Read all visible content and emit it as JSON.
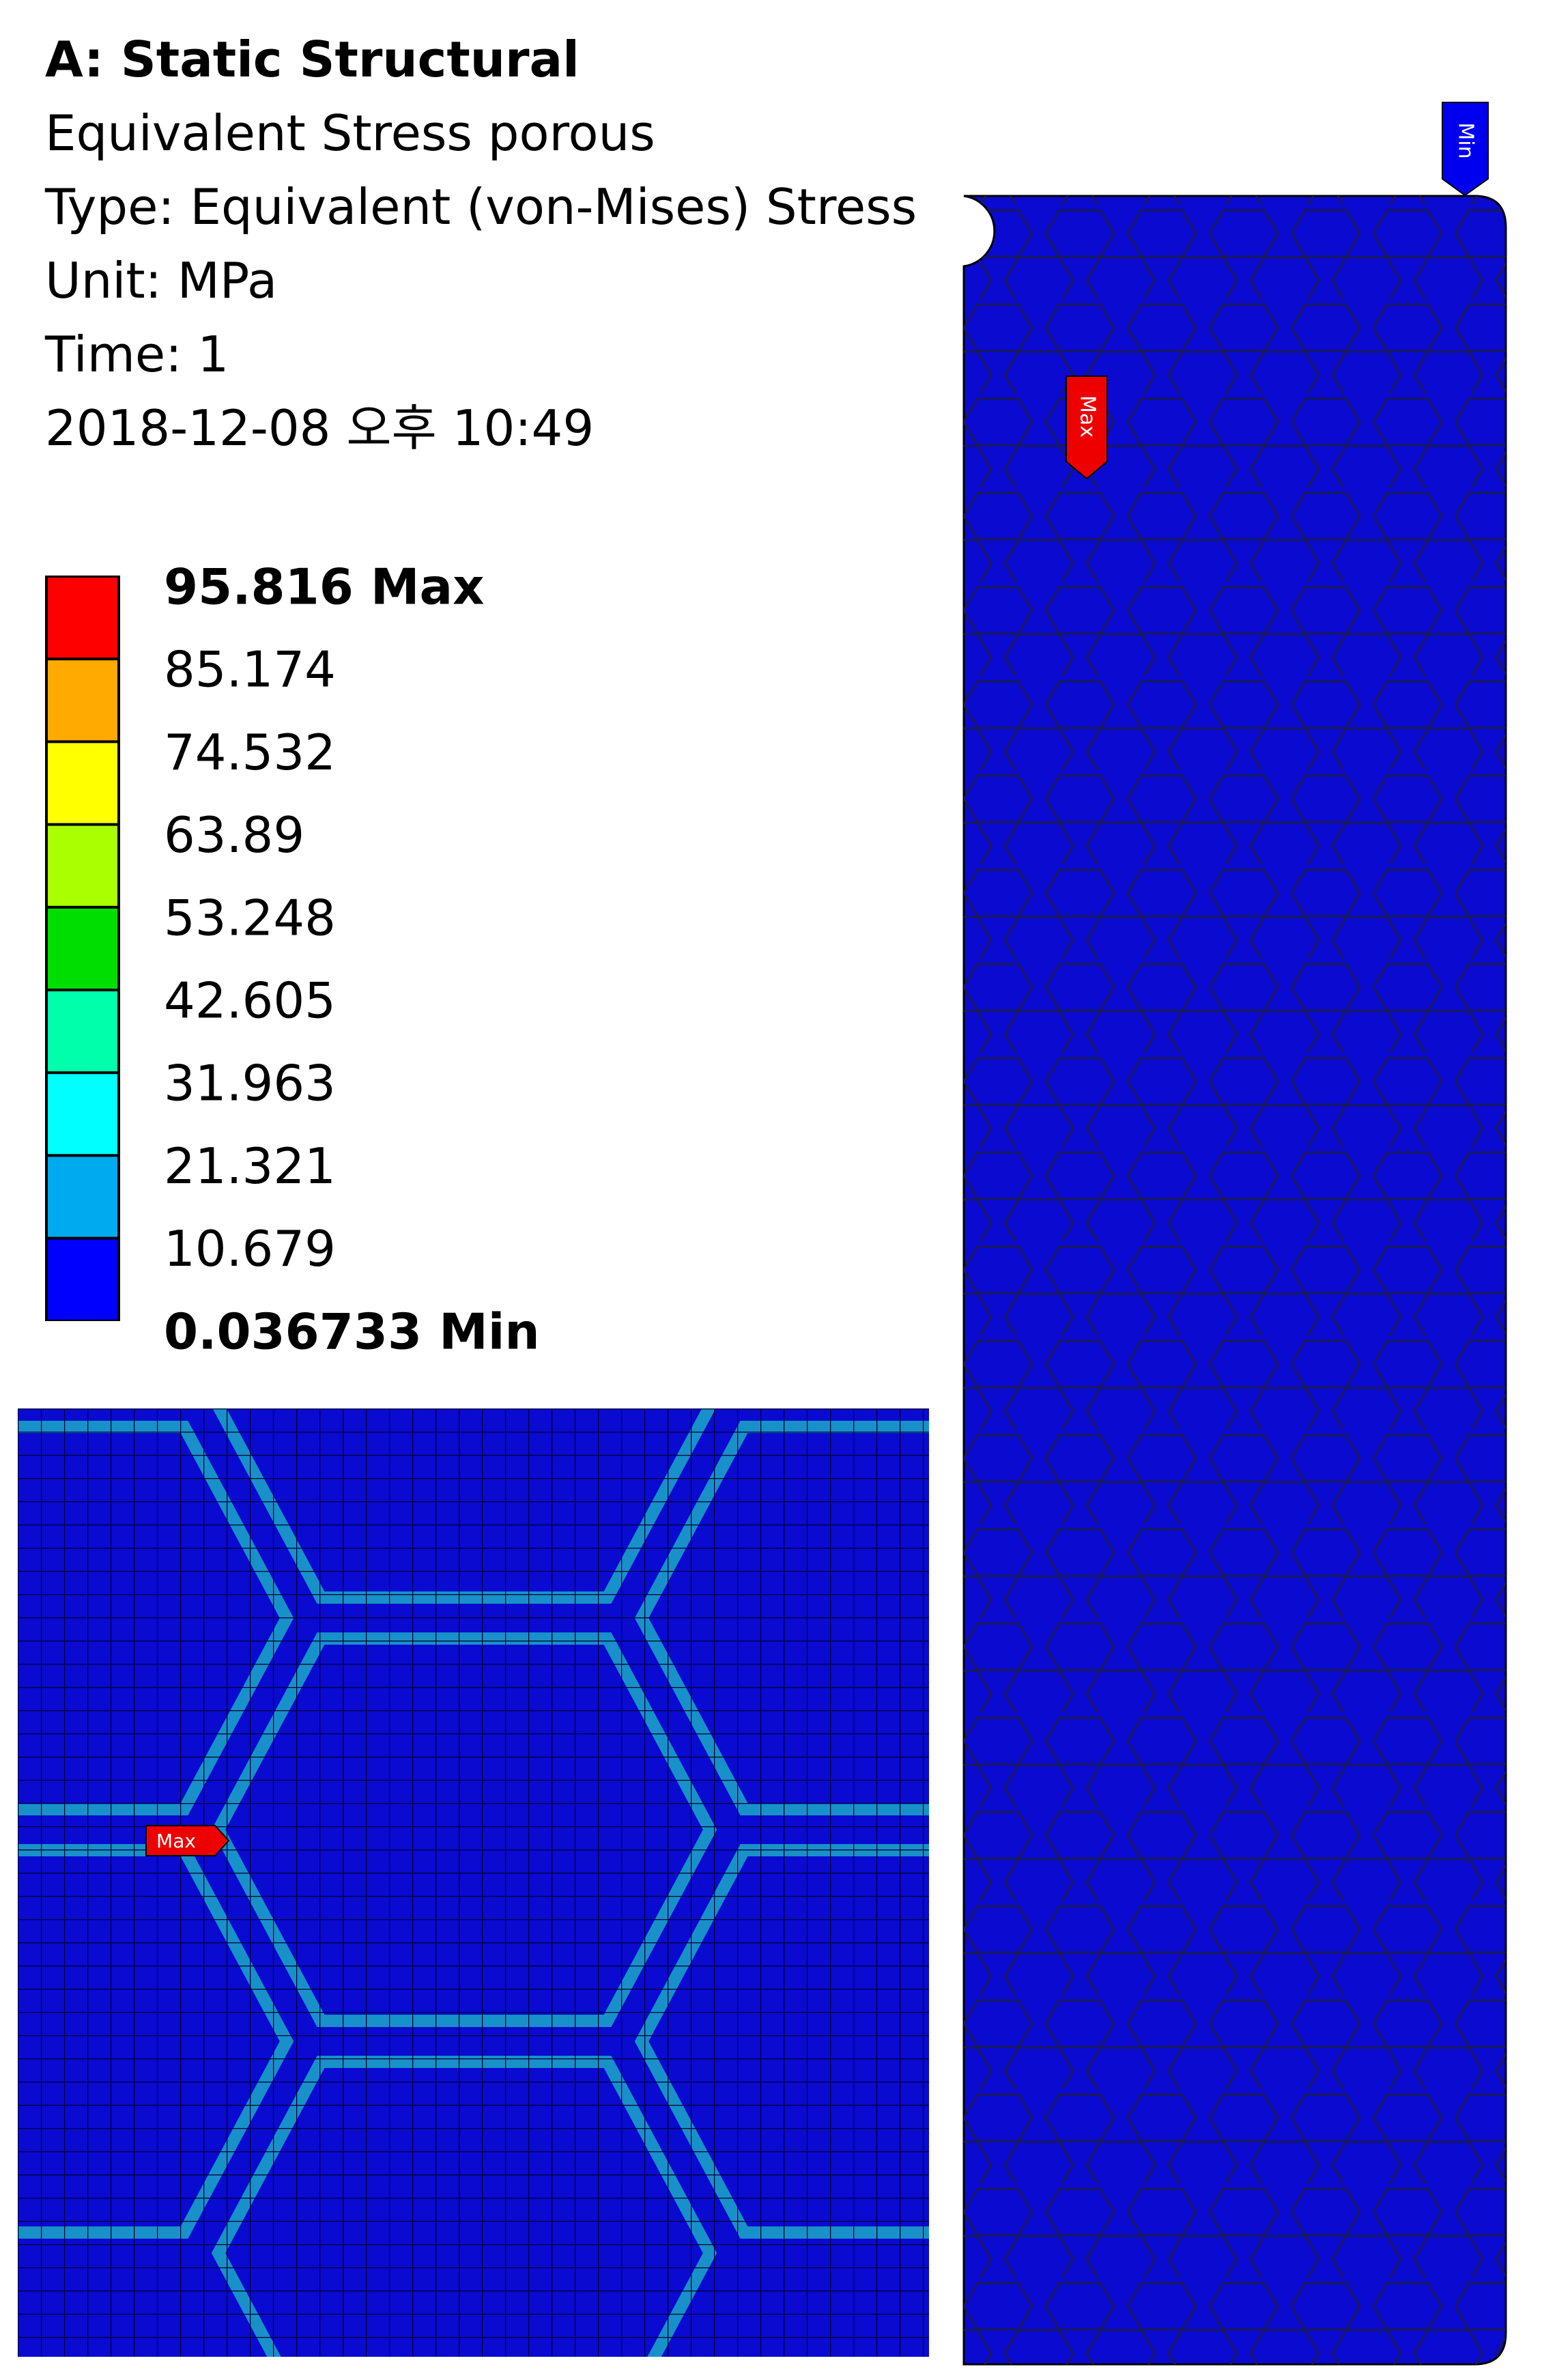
{
  "header": {
    "title": "A: Static Structural",
    "lines": [
      "Equivalent Stress porous",
      "Type: Equivalent (von-Mises) Stress",
      "Unit: MPa",
      "Time: 1",
      "2018-12-08 오후 10:49"
    ]
  },
  "legend": {
    "labels": [
      "95.816 Max",
      "85.174",
      "74.532",
      "63.89",
      "53.248",
      "42.605",
      "31.963",
      "21.321",
      "10.679",
      "0.036733 Min"
    ],
    "colors": [
      "#ff0000",
      "#ffaa00",
      "#ffff00",
      "#aaff00",
      "#00dd00",
      "#00ffaa",
      "#00ffff",
      "#00aaee",
      "#0000ff"
    ]
  },
  "probes": {
    "model_min": "Min",
    "model_max": "Max",
    "detail_max": "Max"
  }
}
